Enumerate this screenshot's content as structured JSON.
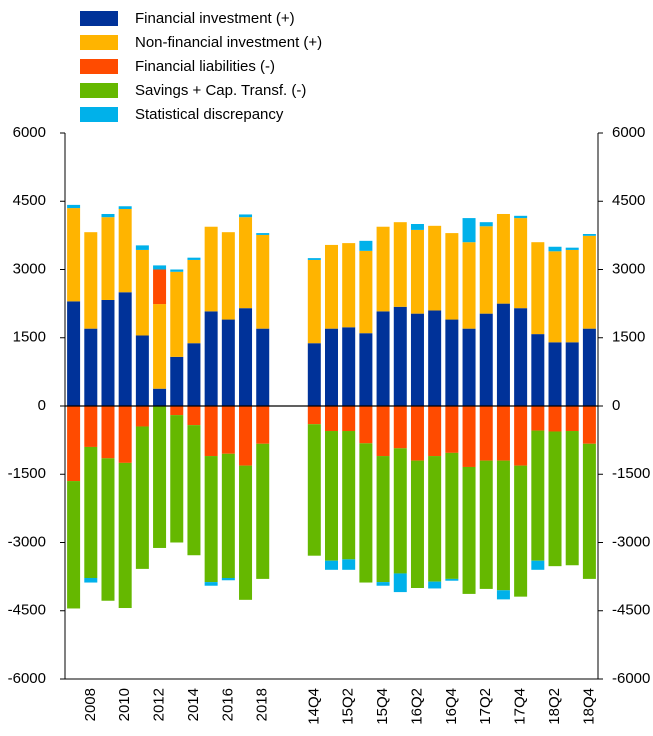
{
  "chart_data": {
    "type": "stacked_bar",
    "categories": [
      null,
      "2008",
      null,
      "2010",
      null,
      "2012",
      null,
      "2014",
      null,
      "2016",
      null,
      "2018",
      null,
      null,
      "14Q4",
      null,
      "15Q2",
      null,
      "15Q4",
      null,
      "16Q2",
      null,
      "16Q4",
      null,
      "17Q2",
      null,
      "17Q4",
      null,
      "18Q2",
      null,
      "18Q4"
    ],
    "series": [
      {
        "name": "Financial investment (+)",
        "color": "#003299",
        "values": [
          2300,
          1700,
          2330,
          2500,
          1550,
          380,
          1080,
          1380,
          2080,
          1900,
          2150,
          1700,
          null,
          null,
          1380,
          1700,
          1730,
          1600,
          2080,
          2180,
          2030,
          2100,
          1900,
          1700,
          2030,
          2250,
          2150,
          1580,
          1400,
          1400,
          1700
        ]
      },
      {
        "name": "Non-financial investment (+)",
        "color": "#ffb400",
        "values": [
          2050,
          2120,
          1820,
          1830,
          1880,
          1860,
          1870,
          1830,
          1860,
          1920,
          2000,
          2060,
          null,
          null,
          1830,
          1840,
          1850,
          1810,
          1860,
          1860,
          1840,
          1860,
          1900,
          1900,
          1920,
          1970,
          1980,
          2020,
          2000,
          2030,
          2040
        ]
      },
      {
        "name": "Financial liabilities (-)",
        "color": "#ff4b00",
        "values": [
          -1650,
          -900,
          -1150,
          -1250,
          -450,
          760,
          -200,
          -420,
          -1100,
          -1050,
          -1310,
          -830,
          null,
          null,
          -400,
          -550,
          -550,
          -820,
          -1100,
          -930,
          -1200,
          -1100,
          -1030,
          -1340,
          -1200,
          -1200,
          -1310,
          -540,
          -560,
          -550,
          -830
        ]
      },
      {
        "name": "Savings + Cap. Transf. (-)",
        "color": "#65b800",
        "values": [
          -2800,
          -2880,
          -3130,
          -3190,
          -3130,
          -3120,
          -2800,
          -2860,
          -2770,
          -2730,
          -2950,
          -2970,
          null,
          null,
          -2890,
          -2850,
          -2820,
          -3060,
          -2770,
          -2750,
          -2800,
          -2760,
          -2770,
          -2790,
          -2820,
          -2850,
          -2880,
          -2860,
          -2960,
          -2950,
          -2970
        ]
      },
      {
        "name": "Statistical discrepancy",
        "color": "#00b1ea",
        "values": [
          70,
          -100,
          70,
          60,
          100,
          90,
          50,
          50,
          -80,
          -50,
          60,
          40,
          null,
          null,
          40,
          -200,
          -230,
          220,
          -80,
          -410,
          130,
          -150,
          -40,
          530,
          90,
          -200,
          50,
          -200,
          100,
          50,
          40
        ]
      }
    ],
    "ylim": [
      -6000,
      6000
    ],
    "yticks": [
      -6000,
      -4500,
      -3000,
      -1500,
      0,
      1500,
      3000,
      4500,
      6000
    ],
    "y2lim": [
      -6000,
      6000
    ],
    "y2ticks": [
      -6000,
      -4500,
      -3000,
      -1500,
      0,
      1500,
      3000,
      4500,
      6000
    ],
    "legend": "top-left"
  }
}
